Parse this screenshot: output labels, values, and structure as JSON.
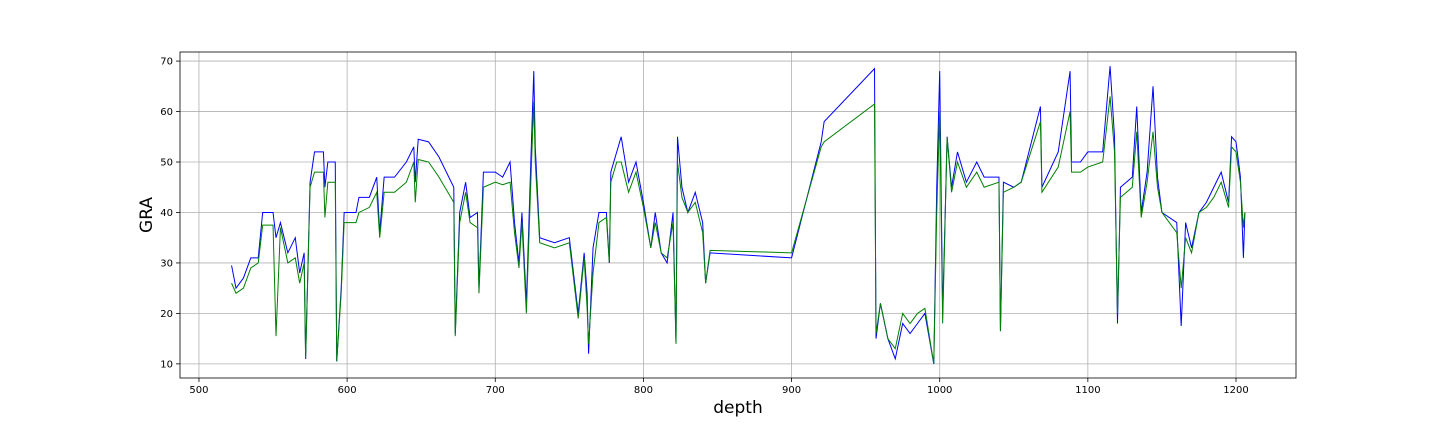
{
  "chart_data": {
    "type": "line",
    "x_label": "depth",
    "y_label": "GRA",
    "x": [
      522,
      525,
      530,
      535,
      540,
      543,
      550,
      552,
      555,
      560,
      565,
      568,
      571,
      572,
      575,
      578,
      584,
      585,
      587,
      592,
      593,
      596,
      598,
      606,
      608,
      615,
      620,
      622,
      625,
      632,
      640,
      645,
      646,
      648,
      655,
      662,
      672,
      673,
      676,
      680,
      683,
      688,
      689,
      692,
      700,
      705,
      710,
      713,
      716,
      718,
      721,
      724,
      726,
      727,
      730,
      740,
      750,
      756,
      760,
      762,
      763,
      766,
      770,
      775,
      777,
      778,
      782,
      785,
      790,
      795,
      800,
      805,
      808,
      812,
      816,
      820,
      822,
      823,
      826,
      830,
      835,
      840,
      842,
      845,
      900,
      920,
      922,
      956,
      957,
      960,
      965,
      970,
      975,
      980,
      985,
      990,
      996,
      998,
      1000,
      1002,
      1005,
      1008,
      1012,
      1018,
      1025,
      1030,
      1040,
      1041,
      1043,
      1050,
      1055,
      1068,
      1069,
      1080,
      1088,
      1089,
      1095,
      1100,
      1110,
      1115,
      1118,
      1120,
      1122,
      1130,
      1133,
      1136,
      1140,
      1144,
      1147,
      1150,
      1160,
      1163,
      1166,
      1170,
      1175,
      1180,
      1185,
      1190,
      1195,
      1197,
      1200,
      1203,
      1205,
      1206
    ],
    "series": [
      {
        "color": "#0000ff",
        "values": [
          29.5,
          25,
          27,
          31,
          31,
          40,
          40,
          35,
          38,
          32,
          35,
          28,
          32,
          11,
          46,
          52,
          52,
          45,
          50,
          50,
          10.5,
          25,
          40,
          40,
          43,
          43,
          47,
          36,
          47,
          47,
          50,
          53,
          46,
          54.5,
          54,
          51,
          45,
          16,
          40,
          46,
          39,
          40,
          25,
          48,
          48,
          47,
          50,
          38,
          30,
          40,
          22,
          50,
          68,
          53,
          35,
          34,
          35,
          20,
          32,
          24,
          12,
          33,
          40,
          40,
          30,
          48,
          52,
          55,
          46,
          50,
          42,
          33,
          40,
          32,
          30,
          40,
          14,
          55,
          45,
          40,
          44,
          38,
          26,
          32,
          31,
          54,
          58,
          68.5,
          15,
          22,
          15,
          11,
          18,
          16,
          18,
          20,
          10,
          45,
          68,
          20,
          55,
          45,
          52,
          46,
          50,
          47,
          47,
          16.5,
          46,
          45,
          46,
          61,
          45,
          52,
          68,
          50,
          50,
          52,
          52,
          69,
          55,
          18,
          45,
          47,
          61,
          40,
          48,
          65,
          47,
          40,
          38,
          17.5,
          38,
          33,
          40,
          42,
          45,
          48,
          42,
          55,
          54,
          47,
          31,
          40
        ]
      },
      {
        "color": "#008000",
        "values": [
          26,
          24,
          25,
          29,
          30,
          37.5,
          37.5,
          15.5,
          37,
          30,
          31,
          26,
          30,
          11,
          45,
          48,
          48,
          39,
          46,
          46,
          10.5,
          24,
          38,
          38,
          40,
          41,
          44,
          35,
          44,
          44,
          46,
          50,
          42,
          50.5,
          50,
          47,
          42,
          15.5,
          38,
          44,
          38,
          37,
          24,
          45,
          46,
          45.5,
          46,
          36,
          29,
          38,
          20,
          46,
          62,
          50,
          34,
          33,
          34,
          19,
          31,
          21,
          14,
          28,
          38,
          39,
          30,
          46,
          50,
          50,
          44,
          48,
          41,
          33,
          38,
          32,
          31,
          38,
          14,
          50,
          43,
          40,
          42,
          36,
          26,
          32.5,
          32,
          53,
          54,
          61.5,
          16,
          22,
          15,
          13,
          20,
          18,
          20,
          21,
          10,
          40,
          60,
          18,
          55,
          44,
          50,
          45,
          48,
          45,
          46,
          16.5,
          44,
          45,
          46,
          58,
          44,
          49,
          60,
          48,
          48,
          49,
          50,
          63,
          52,
          20,
          43,
          45,
          56,
          39,
          46,
          56,
          45,
          40,
          36,
          25,
          35,
          32,
          40,
          41,
          43,
          46,
          41,
          53,
          52,
          46,
          37,
          40
        ]
      }
    ],
    "xlim": [
      487.2,
      1240.5
    ],
    "ylim": [
      7.2,
      71.8
    ],
    "xticks": [
      500,
      600,
      700,
      800,
      900,
      1000,
      1100,
      1200
    ],
    "yticks": [
      10,
      20,
      30,
      40,
      50,
      60,
      70
    ],
    "grid": true
  }
}
